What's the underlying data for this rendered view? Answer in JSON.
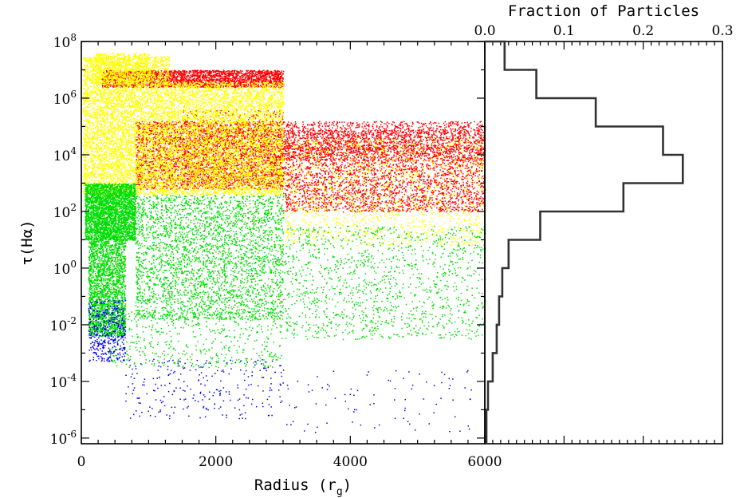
{
  "chart_data": [
    {
      "type": "scatter",
      "xlabel": "Radius (r",
      "xlabel_subscript": "g",
      "xlabel_close": ")",
      "ylabel": "τ(Hα)",
      "xlim": [
        0,
        6000
      ],
      "ylim_log10": [
        -6.2,
        8
      ],
      "y_scale": "log",
      "x_ticks": [
        "0",
        "2000",
        "4000",
        "6000"
      ],
      "y_ticks": [
        {
          "base": "10",
          "exp": "8",
          "log": 8
        },
        {
          "base": "10",
          "exp": "6",
          "log": 6
        },
        {
          "base": "10",
          "exp": "4",
          "log": 4
        },
        {
          "base": "10",
          "exp": "2",
          "log": 2
        },
        {
          "base": "10",
          "exp": "0",
          "log": 0
        },
        {
          "base": "10",
          "exp": "-2",
          "log": -2
        },
        {
          "base": "10",
          "exp": "-4",
          "log": -4
        },
        {
          "base": "10",
          "exp": "-6",
          "log": -6
        }
      ],
      "series": [
        {
          "color": "#ff0000",
          "regions": [
            {
              "r": [
                300,
                3000
              ],
              "logt": [
                6.4,
                7.0
              ],
              "n": 2600
            },
            {
              "r": [
                800,
                3000
              ],
              "logt": [
                2.8,
                5.2
              ],
              "n": 3600
            },
            {
              "r": [
                3000,
                6000
              ],
              "logt": [
                2.0,
                4.3
              ],
              "n": 2800
            },
            {
              "r": [
                3000,
                6000
              ],
              "logt": [
                3.8,
                5.2
              ],
              "n": 1500
            },
            {
              "r": [
                3000,
                6000
              ],
              "logt": [
                4.2,
                4.9
              ],
              "n": 700
            },
            {
              "r": [
                1500,
                3000
              ],
              "logt": [
                3.0,
                5.6
              ],
              "n": 800
            }
          ]
        },
        {
          "color": "#ffff00",
          "regions": [
            {
              "r": [
                20,
                1300
              ],
              "logt": [
                2.6,
                7.5
              ],
              "n": 9000
            },
            {
              "r": [
                1300,
                3000
              ],
              "logt": [
                2.6,
                6.6
              ],
              "n": 6500
            },
            {
              "r": [
                200,
                1000
              ],
              "logt": [
                6.5,
                7.6
              ],
              "n": 700
            },
            {
              "r": [
                3000,
                6000
              ],
              "logt": [
                0.8,
                4.6
              ],
              "n": 1400
            }
          ]
        },
        {
          "color": "#00dd00",
          "regions": [
            {
              "r": [
                50,
                800
              ],
              "logt": [
                1.0,
                3.0
              ],
              "n": 3200
            },
            {
              "r": [
                100,
                650
              ],
              "logt": [
                -2.4,
                1.0
              ],
              "n": 2200
            },
            {
              "r": [
                800,
                3000
              ],
              "logt": [
                -1.8,
                2.6
              ],
              "n": 3200
            },
            {
              "r": [
                3000,
                6000
              ],
              "logt": [
                -2.5,
                1.5
              ],
              "n": 1300
            },
            {
              "r": [
                400,
                3000
              ],
              "logt": [
                -3.5,
                -1.5
              ],
              "n": 500
            }
          ]
        },
        {
          "color": "#0000ee",
          "regions": [
            {
              "r": [
                100,
                650
              ],
              "logt": [
                -3.3,
                -1.1
              ],
              "n": 420
            },
            {
              "r": [
                650,
                3000
              ],
              "logt": [
                -5.3,
                -3.2
              ],
              "n": 260
            },
            {
              "r": [
                3000,
                5800
              ],
              "logt": [
                -5.8,
                -3.6
              ],
              "n": 90
            }
          ]
        }
      ]
    },
    {
      "type": "histogram",
      "orientation": "horizontal",
      "title": "Fraction of Particles",
      "xlim": [
        0,
        0.3
      ],
      "x_ticks": [
        "0.0",
        "0.1",
        "0.2",
        "0.3"
      ],
      "bins_log10_tau": [
        {
          "lo": 7,
          "hi": 8,
          "fraction": 0.025
        },
        {
          "lo": 6,
          "hi": 7,
          "fraction": 0.065
        },
        {
          "lo": 5,
          "hi": 6,
          "fraction": 0.14
        },
        {
          "lo": 4,
          "hi": 5,
          "fraction": 0.225
        },
        {
          "lo": 3,
          "hi": 4,
          "fraction": 0.25
        },
        {
          "lo": 2,
          "hi": 3,
          "fraction": 0.175
        },
        {
          "lo": 1,
          "hi": 2,
          "fraction": 0.07
        },
        {
          "lo": 0,
          "hi": 1,
          "fraction": 0.03
        },
        {
          "lo": -1,
          "hi": 0,
          "fraction": 0.022
        },
        {
          "lo": -2,
          "hi": -1,
          "fraction": 0.018
        },
        {
          "lo": -3,
          "hi": -2,
          "fraction": 0.015
        },
        {
          "lo": -4,
          "hi": -3,
          "fraction": 0.01
        },
        {
          "lo": -5,
          "hi": -4,
          "fraction": 0.004
        },
        {
          "lo": -6.2,
          "hi": -5,
          "fraction": 0.002
        }
      ]
    }
  ]
}
